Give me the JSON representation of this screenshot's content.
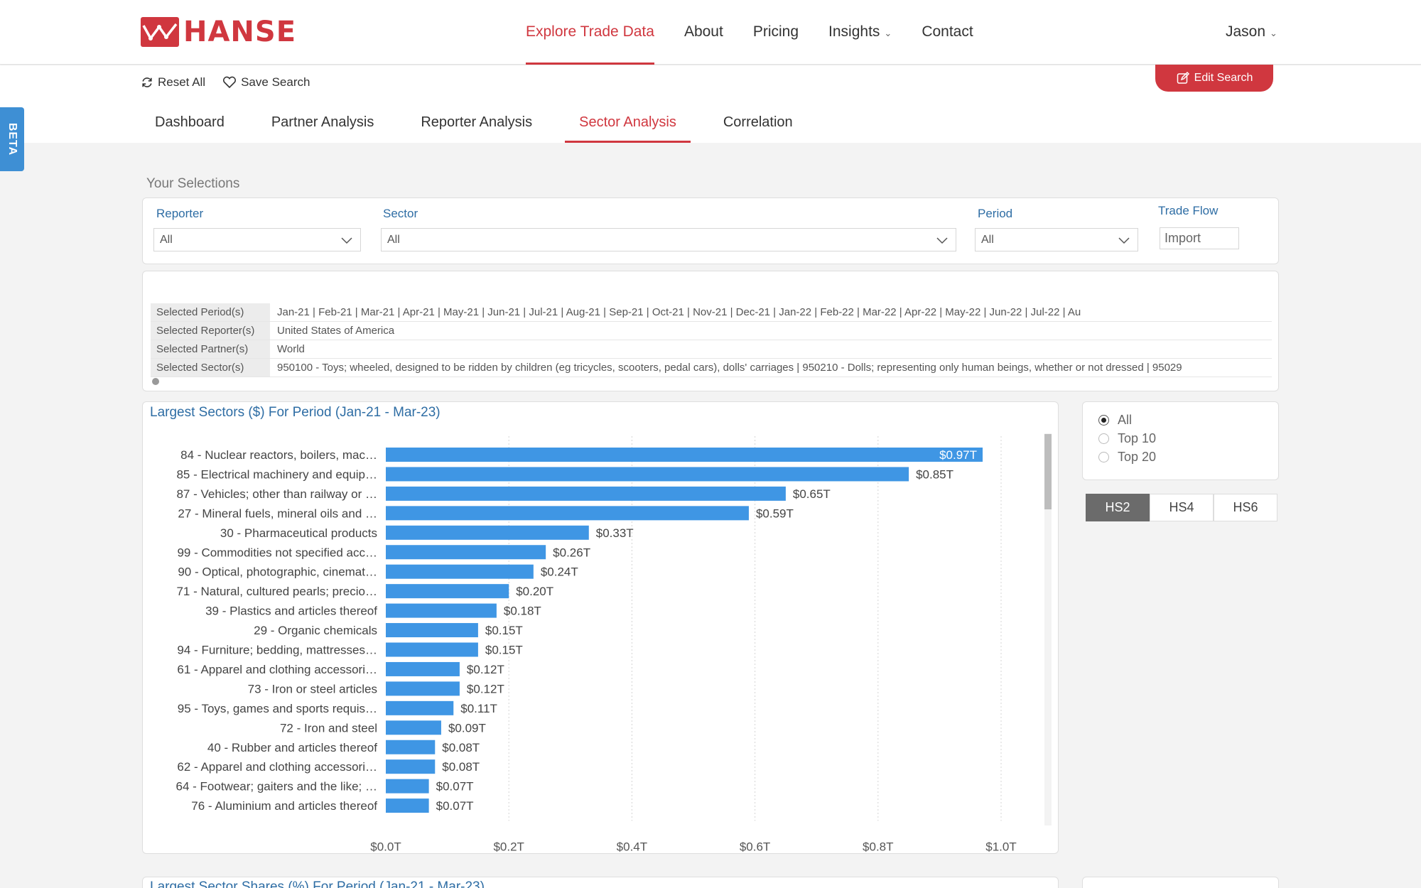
{
  "brand": {
    "name": "HANSE",
    "color": "#d0373f"
  },
  "nav": {
    "items": [
      {
        "label": "Explore Trade Data",
        "active": true
      },
      {
        "label": "About"
      },
      {
        "label": "Pricing"
      },
      {
        "label": "Insights",
        "dropdown": true
      },
      {
        "label": "Contact"
      }
    ],
    "user": "Jason"
  },
  "toolbar": {
    "reset_label": "Reset All",
    "save_label": "Save Search",
    "edit_label": "Edit Search"
  },
  "tabs": [
    "Dashboard",
    "Partner Analysis",
    "Reporter Analysis",
    "Sector Analysis",
    "Correlation"
  ],
  "active_tab": "Sector Analysis",
  "beta_label": "BETA",
  "selections": {
    "title": "Your Selections",
    "reporter": {
      "label": "Reporter",
      "value": "All"
    },
    "sector": {
      "label": "Sector",
      "value": "All"
    },
    "period": {
      "label": "Period",
      "value": "All"
    },
    "trade_flow": {
      "label": "Trade Flow",
      "value": "Import"
    }
  },
  "details": {
    "rows": [
      {
        "key": "Selected Period(s)",
        "value": "Jan-21  |  Feb-21  |  Mar-21  |  Apr-21  |  May-21  |  Jun-21  |  Jul-21  |  Aug-21  |  Sep-21  |  Oct-21  |  Nov-21  |  Dec-21  |  Jan-22  |  Feb-22  |  Mar-22  |  Apr-22  |  May-22  |  Jun-22  |  Jul-22  |  Au"
      },
      {
        "key": "Selected Reporter(s)",
        "value": "United States of America"
      },
      {
        "key": "Selected Partner(s)",
        "value": "World"
      },
      {
        "key": "Selected Sector(s)",
        "value": "950100 - Toys; wheeled, designed to be ridden by children (eg tricycles, scooters, pedal cars), dolls' carriages  |  950210 - Dolls; representing only human beings, whether or not dressed  |  95029"
      }
    ]
  },
  "chart": {
    "title": "Largest Sectors ($) For Period (Jan-21 - Mar-23)",
    "bar_color": "#3f96e4"
  },
  "chart_data": {
    "type": "bar",
    "orientation": "horizontal",
    "title": "Largest Sectors ($) For Period (Jan-21 - Mar-23)",
    "categories": [
      "84 - Nuclear reactors, boilers, mac…",
      "85 - Electrical machinery and equip…",
      "87 - Vehicles; other than railway or …",
      "27 - Mineral fuels, mineral oils and …",
      "30 - Pharmaceutical products",
      "99 - Commodities not specified acc…",
      "90 - Optical, photographic, cinemat…",
      "71 - Natural, cultured pearls; precio…",
      "39 - Plastics and articles thereof",
      "29 - Organic chemicals",
      "94 - Furniture; bedding, mattresses…",
      "61 - Apparel and clothing accessori…",
      "73 - Iron or steel articles",
      "95 - Toys, games and sports requis…",
      "72 - Iron and steel",
      "40 - Rubber and articles thereof",
      "62 - Apparel and clothing accessori…",
      "64 - Footwear; gaiters and the like; …",
      "76 - Aluminium and articles thereof"
    ],
    "values": [
      0.97,
      0.85,
      0.65,
      0.59,
      0.33,
      0.26,
      0.24,
      0.2,
      0.18,
      0.15,
      0.15,
      0.12,
      0.12,
      0.11,
      0.09,
      0.08,
      0.08,
      0.07,
      0.07
    ],
    "data_labels": [
      "$0.97T",
      "$0.85T",
      "$0.65T",
      "$0.59T",
      "$0.33T",
      "$0.26T",
      "$0.24T",
      "$0.20T",
      "$0.18T",
      "$0.15T",
      "$0.15T",
      "$0.12T",
      "$0.12T",
      "$0.11T",
      "$0.09T",
      "$0.08T",
      "$0.08T",
      "$0.07T",
      "$0.07T"
    ],
    "xlim": [
      0,
      1.0
    ],
    "xticks": [
      0,
      0.2,
      0.4,
      0.6,
      0.8,
      1.0
    ],
    "xtick_labels": [
      "$0.0T",
      "$0.2T",
      "$0.4T",
      "$0.6T",
      "$0.8T",
      "$1.0T"
    ],
    "grid": "vertical dotted",
    "xlabel": "",
    "ylabel": ""
  },
  "filter_options": {
    "top": [
      {
        "label": "All",
        "selected": true
      },
      {
        "label": "Top 10",
        "selected": false
      },
      {
        "label": "Top 20",
        "selected": false
      }
    ],
    "hs": [
      {
        "label": "HS2",
        "active": true
      },
      {
        "label": "HS4",
        "active": false
      },
      {
        "label": "HS6",
        "active": false
      }
    ]
  },
  "next_section": {
    "title": "Largest Sector Shares (%) For Period (Jan-21 - Mar-23)"
  }
}
